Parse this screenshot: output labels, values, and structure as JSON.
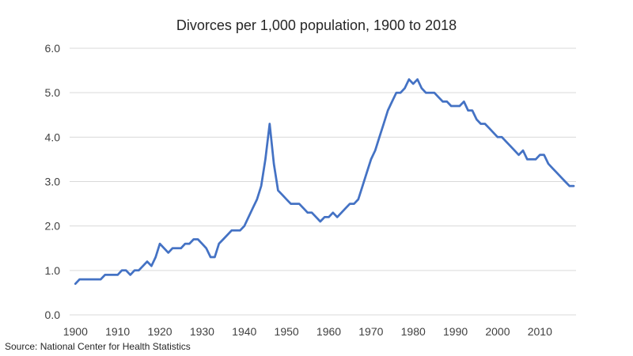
{
  "title": "Divorces per 1,000 population, 1900 to 2018",
  "source": "Source: National Center for Health Statistics",
  "chart_data": {
    "type": "line",
    "title": "Divorces per 1,000 population, 1900 to 2018",
    "xlabel": "",
    "ylabel": "",
    "xlim": [
      1900,
      2018
    ],
    "ylim": [
      0,
      6
    ],
    "x_ticks": [
      1900,
      1910,
      1920,
      1930,
      1940,
      1950,
      1960,
      1970,
      1980,
      1990,
      2000,
      2010
    ],
    "x_tick_labels": [
      "1900",
      "1910",
      "1920",
      "1930",
      "1940",
      "1950",
      "1960",
      "1970",
      "1980",
      "1990",
      "2000",
      "2010"
    ],
    "y_ticks": [
      0,
      1,
      2,
      3,
      4,
      5,
      6
    ],
    "y_tick_labels": [
      "0.0",
      "1.0",
      "2.0",
      "3.0",
      "4.0",
      "5.0",
      "6.0"
    ],
    "grid": "horizontal",
    "legend": "none",
    "series": [
      {
        "color": "#4472c4",
        "x": [
          1900,
          1901,
          1902,
          1903,
          1904,
          1905,
          1906,
          1907,
          1908,
          1909,
          1910,
          1911,
          1912,
          1913,
          1914,
          1915,
          1916,
          1917,
          1918,
          1919,
          1920,
          1921,
          1922,
          1923,
          1924,
          1925,
          1926,
          1927,
          1928,
          1929,
          1930,
          1931,
          1932,
          1933,
          1934,
          1935,
          1936,
          1937,
          1938,
          1939,
          1940,
          1941,
          1942,
          1943,
          1944,
          1945,
          1946,
          1947,
          1948,
          1949,
          1950,
          1951,
          1952,
          1953,
          1954,
          1955,
          1956,
          1957,
          1958,
          1959,
          1960,
          1961,
          1962,
          1963,
          1964,
          1965,
          1966,
          1967,
          1968,
          1969,
          1970,
          1971,
          1972,
          1973,
          1974,
          1975,
          1976,
          1977,
          1978,
          1979,
          1980,
          1981,
          1982,
          1983,
          1984,
          1985,
          1986,
          1987,
          1988,
          1989,
          1990,
          1991,
          1992,
          1993,
          1994,
          1995,
          1996,
          1997,
          1998,
          1999,
          2000,
          2001,
          2002,
          2003,
          2004,
          2005,
          2006,
          2007,
          2008,
          2009,
          2010,
          2011,
          2012,
          2013,
          2014,
          2015,
          2016,
          2017,
          2018
        ],
        "values": [
          0.7,
          0.8,
          0.8,
          0.8,
          0.8,
          0.8,
          0.8,
          0.9,
          0.9,
          0.9,
          0.9,
          1.0,
          1.0,
          0.9,
          1.0,
          1.0,
          1.1,
          1.2,
          1.1,
          1.3,
          1.6,
          1.5,
          1.4,
          1.5,
          1.5,
          1.5,
          1.6,
          1.6,
          1.7,
          1.7,
          1.6,
          1.5,
          1.3,
          1.3,
          1.6,
          1.7,
          1.8,
          1.9,
          1.9,
          1.9,
          2.0,
          2.2,
          2.4,
          2.6,
          2.9,
          3.5,
          4.3,
          3.4,
          2.8,
          2.7,
          2.6,
          2.5,
          2.5,
          2.5,
          2.4,
          2.3,
          2.3,
          2.2,
          2.1,
          2.2,
          2.2,
          2.3,
          2.2,
          2.3,
          2.4,
          2.5,
          2.5,
          2.6,
          2.9,
          3.2,
          3.5,
          3.7,
          4.0,
          4.3,
          4.6,
          4.8,
          5.0,
          5.0,
          5.1,
          5.3,
          5.2,
          5.3,
          5.1,
          5.0,
          5.0,
          5.0,
          4.9,
          4.8,
          4.8,
          4.7,
          4.7,
          4.7,
          4.8,
          4.6,
          4.6,
          4.4,
          4.3,
          4.3,
          4.2,
          4.1,
          4.0,
          4.0,
          3.9,
          3.8,
          3.7,
          3.6,
          3.7,
          3.5,
          3.5,
          3.5,
          3.6,
          3.6,
          3.4,
          3.3,
          3.2,
          3.1,
          3.0,
          2.9,
          2.9
        ]
      }
    ]
  }
}
